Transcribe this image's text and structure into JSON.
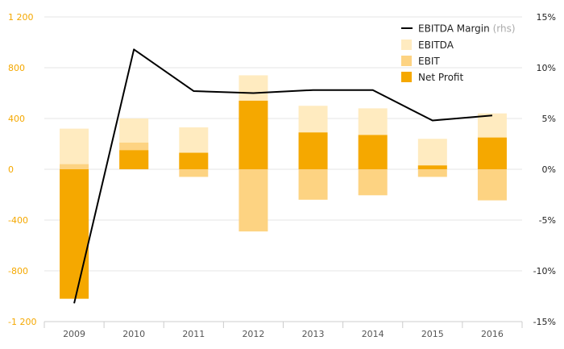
{
  "chart_data": {
    "type": "bar",
    "categories": [
      "2009",
      "2010",
      "2011",
      "2012",
      "2013",
      "2014",
      "2015",
      "2016"
    ],
    "series": [
      {
        "name": "EBITDA",
        "kind": "bar",
        "axis": "left",
        "values": [
          320,
          400,
          330,
          740,
          500,
          480,
          240,
          440
        ]
      },
      {
        "name": "EBIT",
        "kind": "bar",
        "axis": "left",
        "values": [
          40,
          210,
          -60,
          -490,
          -240,
          -205,
          -60,
          -245
        ]
      },
      {
        "name": "Net Profit",
        "kind": "bar",
        "axis": "left",
        "values": [
          -1020,
          150,
          130,
          540,
          290,
          270,
          30,
          250
        ]
      },
      {
        "name": "EBITDA Margin",
        "name_suffix": "(rhs)",
        "kind": "line",
        "axis": "right",
        "values": [
          -13.2,
          11.8,
          7.7,
          7.5,
          7.8,
          7.8,
          4.8,
          5.3
        ]
      }
    ],
    "y_left": {
      "min": -1200,
      "max": 1200,
      "ticks": [
        "1 200",
        "800",
        "400",
        "0",
        "-400",
        "-800",
        "-1 200"
      ]
    },
    "y_right": {
      "min": -15,
      "max": 15,
      "ticks": [
        "15%",
        "10%",
        "5%",
        "0%",
        "-5%",
        "-10%",
        "-15%"
      ]
    },
    "legend_position": "top-right",
    "grid": "horizontal",
    "colors": {
      "EBITDA": "#FFEBC0",
      "EBIT": "#FDD382",
      "Net Profit": "#F5A800",
      "EBITDA Margin": "#000000",
      "left_ticks": "#F5A800",
      "grid": "#e6e6e6"
    }
  }
}
